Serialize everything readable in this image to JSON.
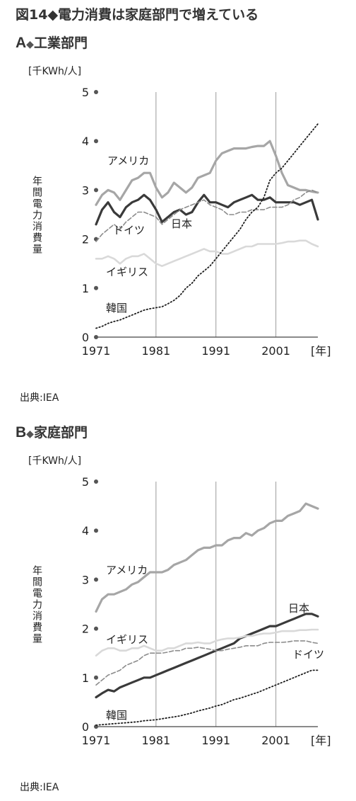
{
  "figure_title": "図14◆電力消費は家庭部門で増えている",
  "panels": [
    {
      "letter": "A",
      "name": "工業部門",
      "source": "出典:IEA"
    },
    {
      "letter": "B",
      "name": "家庭部門",
      "source": "出典:IEA"
    }
  ],
  "colors": {
    "america": "#a6a6a6",
    "japan": "#3a3a3a",
    "germany": "#8c8c8c",
    "uk": "#d9d9d9",
    "korea": "#1e1e1e",
    "grid": "#9a9a9a",
    "axis": "#444444"
  },
  "chart_data": [
    {
      "type": "line",
      "title": "工業部門",
      "unit_label": "[千KWh/人]",
      "ylabel": "年間電力消費量",
      "xlabel": "[年]",
      "x_tick_labels": [
        "1971",
        "1981",
        "1991",
        "2001"
      ],
      "y_tick_labels": [
        "0",
        "1",
        "2",
        "3",
        "4",
        "5"
      ],
      "xlim": [
        1971,
        2008
      ],
      "ylim": [
        0,
        5
      ],
      "grid": "vertical at 1981, 1991, 2001",
      "x": [
        1971,
        1972,
        1973,
        1974,
        1975,
        1976,
        1977,
        1978,
        1979,
        1980,
        1981,
        1982,
        1983,
        1984,
        1985,
        1986,
        1987,
        1988,
        1989,
        1990,
        1991,
        1992,
        1993,
        1994,
        1995,
        1996,
        1997,
        1998,
        1999,
        2000,
        2001,
        2002,
        2003,
        2004,
        2005,
        2006,
        2007,
        2008
      ],
      "series": [
        {
          "name": "アメリカ",
          "key": "america",
          "values": [
            2.7,
            2.9,
            3.0,
            2.95,
            2.8,
            3.0,
            3.2,
            3.25,
            3.35,
            3.35,
            3.05,
            2.85,
            2.95,
            3.15,
            3.05,
            2.95,
            3.05,
            3.25,
            3.3,
            3.35,
            3.6,
            3.75,
            3.8,
            3.85,
            3.85,
            3.85,
            3.88,
            3.9,
            3.9,
            4.0,
            3.7,
            3.35,
            3.1,
            3.05,
            3.0,
            3.0,
            2.97,
            2.95
          ]
        },
        {
          "name": "日本",
          "key": "japan",
          "values": [
            2.3,
            2.6,
            2.75,
            2.55,
            2.45,
            2.65,
            2.75,
            2.8,
            2.9,
            2.8,
            2.6,
            2.35,
            2.45,
            2.55,
            2.6,
            2.5,
            2.55,
            2.75,
            2.9,
            2.75,
            2.75,
            2.7,
            2.65,
            2.75,
            2.8,
            2.85,
            2.9,
            2.8,
            2.8,
            2.85,
            2.75,
            2.75,
            2.75,
            2.75,
            2.7,
            2.75,
            2.8,
            2.4
          ]
        },
        {
          "name": "ドイツ",
          "key": "germany",
          "values": [
            1.95,
            2.1,
            2.2,
            2.3,
            2.2,
            2.35,
            2.45,
            2.55,
            2.55,
            2.5,
            2.45,
            2.3,
            2.4,
            2.5,
            2.6,
            2.65,
            2.7,
            2.75,
            2.8,
            2.7,
            2.65,
            2.6,
            2.5,
            2.5,
            2.55,
            2.55,
            2.6,
            2.6,
            2.6,
            2.65,
            2.65,
            2.65,
            2.7,
            2.8,
            2.85,
            2.95,
            3.0,
            2.95
          ]
        },
        {
          "name": "イギリス",
          "key": "uk",
          "values": [
            1.6,
            1.6,
            1.65,
            1.6,
            1.5,
            1.6,
            1.65,
            1.65,
            1.7,
            1.6,
            1.5,
            1.45,
            1.5,
            1.55,
            1.6,
            1.65,
            1.7,
            1.75,
            1.8,
            1.75,
            1.75,
            1.7,
            1.7,
            1.75,
            1.8,
            1.85,
            1.85,
            1.9,
            1.9,
            1.9,
            1.9,
            1.92,
            1.95,
            1.95,
            1.97,
            1.97,
            1.9,
            1.85
          ]
        },
        {
          "name": "韓国",
          "key": "korea",
          "values": [
            0.18,
            0.22,
            0.28,
            0.32,
            0.35,
            0.4,
            0.45,
            0.5,
            0.55,
            0.58,
            0.6,
            0.62,
            0.68,
            0.75,
            0.85,
            1.0,
            1.1,
            1.25,
            1.35,
            1.45,
            1.6,
            1.75,
            1.9,
            2.05,
            2.2,
            2.4,
            2.55,
            2.65,
            2.85,
            3.2,
            3.35,
            3.45,
            3.6,
            3.75,
            3.9,
            4.05,
            4.2,
            4.35
          ]
        }
      ]
    },
    {
      "type": "line",
      "title": "家庭部門",
      "unit_label": "[千KWh/人]",
      "ylabel": "年間電力消費量",
      "xlabel": "[年]",
      "x_tick_labels": [
        "1971",
        "1981",
        "1991",
        "2001"
      ],
      "y_tick_labels": [
        "0",
        "1",
        "2",
        "3",
        "4",
        "5"
      ],
      "xlim": [
        1971,
        2008
      ],
      "ylim": [
        0,
        5
      ],
      "grid": "vertical at 1981, 1991, 2001",
      "x": [
        1971,
        1972,
        1973,
        1974,
        1975,
        1976,
        1977,
        1978,
        1979,
        1980,
        1981,
        1982,
        1983,
        1984,
        1985,
        1986,
        1987,
        1988,
        1989,
        1990,
        1991,
        1992,
        1993,
        1994,
        1995,
        1996,
        1997,
        1998,
        1999,
        2000,
        2001,
        2002,
        2003,
        2004,
        2005,
        2006,
        2007,
        2008
      ],
      "series": [
        {
          "name": "アメリカ",
          "key": "america",
          "values": [
            2.35,
            2.6,
            2.7,
            2.7,
            2.75,
            2.8,
            2.9,
            2.95,
            3.05,
            3.15,
            3.15,
            3.15,
            3.2,
            3.3,
            3.35,
            3.4,
            3.5,
            3.6,
            3.65,
            3.65,
            3.7,
            3.7,
            3.8,
            3.85,
            3.85,
            3.95,
            3.9,
            4.0,
            4.05,
            4.15,
            4.2,
            4.2,
            4.3,
            4.35,
            4.4,
            4.55,
            4.5,
            4.45
          ]
        },
        {
          "name": "日本",
          "key": "japan",
          "values": [
            0.6,
            0.68,
            0.75,
            0.72,
            0.8,
            0.85,
            0.9,
            0.95,
            1.0,
            1.0,
            1.05,
            1.1,
            1.15,
            1.2,
            1.25,
            1.3,
            1.35,
            1.4,
            1.45,
            1.5,
            1.55,
            1.6,
            1.65,
            1.7,
            1.8,
            1.85,
            1.9,
            1.95,
            2.0,
            2.05,
            2.05,
            2.1,
            2.15,
            2.2,
            2.25,
            2.3,
            2.3,
            2.25
          ]
        },
        {
          "name": "ドイツ",
          "key": "germany",
          "values": [
            0.85,
            0.95,
            1.05,
            1.1,
            1.15,
            1.25,
            1.3,
            1.35,
            1.45,
            1.5,
            1.5,
            1.5,
            1.52,
            1.55,
            1.55,
            1.6,
            1.6,
            1.62,
            1.6,
            1.58,
            1.55,
            1.55,
            1.58,
            1.6,
            1.62,
            1.65,
            1.65,
            1.65,
            1.7,
            1.72,
            1.72,
            1.72,
            1.73,
            1.75,
            1.75,
            1.75,
            1.72,
            1.7
          ]
        },
        {
          "name": "イギリス",
          "key": "uk",
          "values": [
            1.45,
            1.55,
            1.6,
            1.6,
            1.55,
            1.55,
            1.6,
            1.6,
            1.65,
            1.6,
            1.55,
            1.55,
            1.6,
            1.6,
            1.65,
            1.7,
            1.7,
            1.72,
            1.7,
            1.7,
            1.75,
            1.78,
            1.8,
            1.8,
            1.82,
            1.85,
            1.85,
            1.88,
            1.9,
            1.9,
            1.92,
            1.95,
            1.95,
            1.95,
            1.97,
            1.97,
            1.98,
            1.98
          ]
        },
        {
          "name": "韓国",
          "key": "korea",
          "values": [
            0.03,
            0.04,
            0.05,
            0.06,
            0.07,
            0.08,
            0.09,
            0.1,
            0.12,
            0.13,
            0.14,
            0.16,
            0.18,
            0.2,
            0.22,
            0.25,
            0.28,
            0.32,
            0.35,
            0.38,
            0.42,
            0.45,
            0.5,
            0.55,
            0.58,
            0.62,
            0.66,
            0.7,
            0.75,
            0.8,
            0.85,
            0.9,
            0.95,
            1.0,
            1.05,
            1.1,
            1.15,
            1.15
          ]
        }
      ]
    }
  ]
}
